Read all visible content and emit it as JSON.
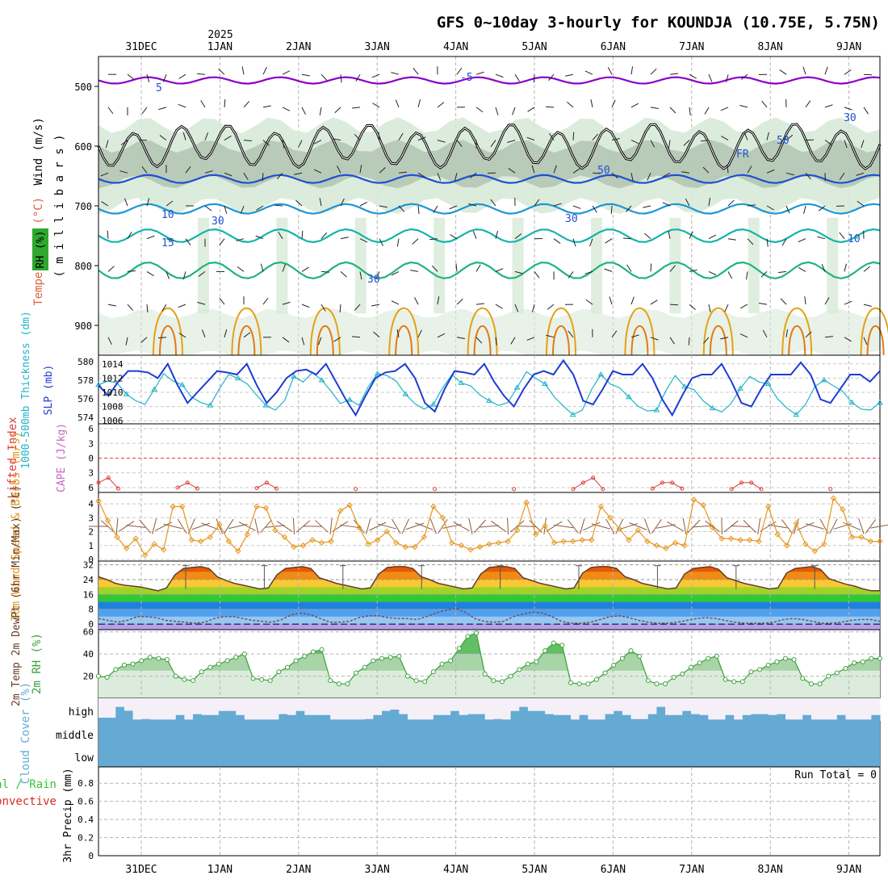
{
  "title": "GFS 0~10day 3-hourly for KOUNDJA (10.75E, 5.75N)",
  "year_label": "2025",
  "days": [
    "31DEC",
    "1JAN",
    "2JAN",
    "3JAN",
    "4JAN",
    "5JAN",
    "6JAN",
    "7JAN",
    "8JAN",
    "9JAN"
  ],
  "chart_data": [
    {
      "type": "heatmap",
      "id": "upper-air",
      "ylabel_parts": {
        "rh": "RH (%)",
        "temp": "Temperature (°C)",
        "wind": "Wind (m/s)",
        "pres": "( m i l l i b a r s )"
      },
      "yticks": [
        500,
        600,
        700,
        800,
        900
      ],
      "ylim": [
        950,
        450
      ],
      "contour_labels": [
        "5",
        "-5",
        "10",
        "15",
        "30",
        "30",
        "30",
        "30",
        "50",
        "50",
        "FR",
        "10"
      ],
      "colors": {
        "moist": "#d8ead8",
        "very_moist": "#9aae9a",
        "saturated": "#4cc24c",
        "t_minus5": "#8b00c8",
        "t_5": "#1e50d2",
        "t_10": "#1e96d2",
        "t_15": "#14b4aa",
        "t_20": "#1eb482",
        "t_25": "#e6a014",
        "t_30": "#e67814",
        "freezing": "#000000"
      }
    },
    {
      "type": "line",
      "id": "thickness-slp",
      "ylabel_left": "1000-500mb Thickness (dm)",
      "ylabel_right": "SLP (mb)",
      "left_ticks": [
        574,
        576,
        578,
        580
      ],
      "right_ticks": [
        1006,
        1008,
        1010,
        1012,
        1014
      ],
      "slp": [
        1011,
        1009.5,
        1011.5,
        1013,
        1013,
        1012.8,
        1012,
        1014,
        1011,
        1008.5,
        1010,
        1011.5,
        1013,
        1012.8,
        1012.5,
        1014,
        1011,
        1008.5,
        1010,
        1012,
        1013,
        1013.2,
        1012.5,
        1014,
        1011.5,
        1009,
        1006.8,
        1009.5,
        1012,
        1012.8,
        1013,
        1014,
        1012,
        1008.5,
        1007.3,
        1010.5,
        1013,
        1012.8,
        1012.5,
        1014,
        1011.5,
        1009.5,
        1008,
        1010.5,
        1012.5,
        1013,
        1012.5,
        1014.5,
        1012.5,
        1008.8,
        1008.3,
        1010.5,
        1013,
        1012.5,
        1012.5,
        1014,
        1012,
        1009,
        1006.8,
        1009.5,
        1012,
        1012.5,
        1012.5,
        1014,
        1011.5,
        1008.5,
        1008,
        1010.5,
        1012.5,
        1012.5,
        1012.5,
        1014.2,
        1012.5,
        1009,
        1008.5,
        1010.5,
        1012.5,
        1012.5,
        1011.5,
        1013
      ],
      "thickness": [
        577.5,
        577.9,
        577.7,
        576.5,
        575.8,
        575.4,
        577.0,
        578.7,
        577.9,
        577.5,
        576.2,
        575.6,
        575.3,
        577.1,
        578.6,
        578.2,
        577.6,
        576.4,
        575.3,
        574.8,
        575.8,
        578.4,
        577.8,
        578.8,
        578.0,
        576.8,
        575.5,
        575.9,
        575.3,
        577.3,
        578.7,
        578.5,
        577.9,
        576.5,
        575.5,
        574.9,
        575.4,
        577.2,
        578.6,
        577.7,
        577.4,
        576.4,
        575.8,
        575.3,
        575.6,
        577.2,
        578.9,
        578.2,
        577.6,
        576.2,
        575.2,
        574.3,
        574.8,
        577.0,
        578.6,
        577.6,
        577.2,
        576.2,
        575.2,
        574.7,
        574.8,
        576.9,
        578.5,
        577.3,
        577.0,
        575.8,
        575.0,
        574.6,
        575.5,
        577.1,
        578.4,
        577.8,
        577.6,
        576.0,
        575.0,
        574.3,
        575.4,
        577.3,
        578.0,
        577.4,
        576.8,
        575.6,
        574.9,
        574.8,
        575.6
      ],
      "colors": {
        "slp": "#1e3cd2",
        "thickness": "#1eb4c8"
      }
    },
    {
      "type": "line",
      "id": "cape-li",
      "ylabel": "Lifted Index",
      "ylabel2": "CAPE (J/kg)",
      "yticks": [
        "6",
        "3",
        "0",
        "3",
        "6"
      ],
      "lifted_index": [
        -5.0,
        -4.0,
        -6.2,
        null,
        null,
        null,
        null,
        null,
        -6.0,
        -5.0,
        -6.2,
        null,
        null,
        null,
        null,
        null,
        -6.1,
        -5.0,
        -6.2,
        null,
        null,
        null,
        null,
        null,
        null,
        null,
        -6.3,
        null,
        null,
        null,
        null,
        null,
        null,
        null,
        -6.3,
        null,
        null,
        null,
        null,
        null,
        null,
        null,
        -6.3,
        null,
        null,
        null,
        null,
        null,
        -6.3,
        -5.0,
        -4.0,
        -6.3,
        null,
        null,
        null,
        null,
        -6.2,
        -5.0,
        -5.0,
        -6.2,
        null,
        null,
        null,
        null,
        -6.3,
        -5.0,
        -5.0,
        -6.3,
        null,
        null,
        null,
        null,
        null,
        null,
        -6.3,
        null,
        null,
        null,
        null,
        null
      ],
      "colors": {
        "lifted_index": "#dc3c3c",
        "cape": "#c864c8",
        "zero_line": "#dc3c3c"
      }
    },
    {
      "type": "line",
      "id": "wind10m",
      "ylabel": "10m Wind Speed & Barbs (m/s)",
      "yticks": [
        0,
        1,
        2,
        3,
        4
      ],
      "speed": [
        4.2,
        2.8,
        1.6,
        0.8,
        1.5,
        0.3,
        1.1,
        0.7,
        3.8,
        3.8,
        1.4,
        1.3,
        1.6,
        2.5,
        1.3,
        0.6,
        1.8,
        3.8,
        3.7,
        2.1,
        1.6,
        0.9,
        1.0,
        1.4,
        1.2,
        1.3,
        3.5,
        3.9,
        2.3,
        1.1,
        1.4,
        2.0,
        1.2,
        0.9,
        0.9,
        1.6,
        3.8,
        3.0,
        1.2,
        1.0,
        0.7,
        0.9,
        1.1,
        1.2,
        1.3,
        2.1,
        4.1,
        1.8,
        2.4,
        1.2,
        1.3,
        1.3,
        1.4,
        1.4,
        3.8,
        3.0,
        2.2,
        1.4,
        2.1,
        1.3,
        1.0,
        0.8,
        1.2,
        1.0,
        4.3,
        3.9,
        2.3,
        1.5,
        1.5,
        1.4,
        1.4,
        1.3,
        3.8,
        1.8,
        1.0,
        2.6,
        1.1,
        0.6,
        1.1,
        4.4,
        3.6,
        1.6,
        1.6,
        1.3,
        1.3
      ],
      "colors": {
        "speed": "#e6961e",
        "barbs": "#8c5a3c"
      }
    },
    {
      "type": "area",
      "id": "temp2m",
      "ylabel": "2m Temp 2m DewPt (6hr Min/Max) (°C)",
      "yticks": [
        0,
        8,
        16,
        24,
        32
      ],
      "temp": [
        25.5,
        24.0,
        22.0,
        21.0,
        20.5,
        20.0,
        19.0,
        18.0,
        19.5,
        26.5,
        30.0,
        30.5,
        31.0,
        30.0,
        25.5,
        23.5,
        22.0,
        21.0,
        20.0,
        19.0,
        19.5,
        26.5,
        30.0,
        30.5,
        31.0,
        30.0,
        25.0,
        23.5,
        22.0,
        21.0,
        20.0,
        19.0,
        19.5,
        27.0,
        30.5,
        31.0,
        31.0,
        30.0,
        25.5,
        24.0,
        22.0,
        21.0,
        20.0,
        19.0,
        19.5,
        27.0,
        30.5,
        31.0,
        31.0,
        30.0,
        25.0,
        23.5,
        22.0,
        21.0,
        20.0,
        19.0,
        19.5,
        27.5,
        30.5,
        31.0,
        31.0,
        30.0,
        25.5,
        24.0,
        22.0,
        21.0,
        20.0,
        19.0,
        19.5,
        27.0,
        30.0,
        30.5,
        31.0,
        29.5,
        25.0,
        23.5,
        22.0,
        21.0,
        20.0,
        19.0,
        19.5,
        27.5,
        30.0,
        30.5,
        31.0,
        29.5,
        24.5,
        23.0,
        21.5,
        20.5,
        19.0,
        18.0,
        18.0
      ],
      "dewpoint": [
        3.0,
        2.0,
        1.0,
        2.0,
        4.0,
        4.0,
        3.5,
        2.0,
        1.5,
        1.0,
        0.5,
        1.0,
        3.0,
        4.0,
        4.0,
        3.0,
        2.0,
        1.5,
        1.0,
        2.5,
        5.0,
        6.0,
        5.0,
        3.0,
        1.0,
        1.0,
        1.5,
        3.5,
        4.5,
        4.5,
        3.5,
        3.0,
        3.0,
        2.5,
        4.0,
        6.0,
        7.5,
        8.5,
        6.5,
        3.0,
        1.5,
        1.0,
        1.5,
        4.0,
        5.5,
        6.5,
        6.0,
        4.0,
        1.5,
        0.5,
        0.5,
        1.0,
        2.5,
        4.0,
        4.5,
        3.5,
        2.0,
        1.0,
        0.5,
        0.5,
        1.0,
        2.0,
        3.0,
        3.5,
        3.0,
        2.0,
        1.0,
        0.5,
        0.5,
        0.5,
        1.0,
        2.5,
        3.0,
        2.5,
        1.5,
        0.5,
        0.5,
        1.0,
        2.0,
        2.5,
        2.5,
        1.5
      ],
      "bands": [
        {
          "from": 28,
          "to": 40,
          "color": "#e65a00"
        },
        {
          "from": 24,
          "to": 28,
          "color": "#f08c14"
        },
        {
          "from": 20,
          "to": 24,
          "color": "#fac832"
        },
        {
          "from": 16,
          "to": 20,
          "color": "#a0d228"
        },
        {
          "from": 12,
          "to": 16,
          "color": "#32c832"
        },
        {
          "from": 8,
          "to": 12,
          "color": "#1e82dc"
        },
        {
          "from": 4,
          "to": 8,
          "color": "#50a0f0"
        },
        {
          "from": 0,
          "to": 4,
          "color": "#96c8f5"
        },
        {
          "from": -4,
          "to": 0,
          "color": "#b4a0f0"
        }
      ],
      "colors": {
        "temp_line": "#643c28",
        "dew_line": "#785050",
        "freeze_line": "#000000"
      }
    },
    {
      "type": "area",
      "id": "rh2m",
      "ylabel": "2m RH (%)",
      "yticks": [
        20,
        40,
        60
      ],
      "ylim": [
        0,
        60
      ],
      "rh": [
        20,
        19,
        26,
        30,
        31,
        34,
        37,
        36,
        35,
        20,
        17,
        16,
        24,
        28,
        31,
        34,
        37,
        40,
        18,
        17,
        16,
        24,
        28,
        34,
        38,
        42,
        44,
        16,
        13,
        13,
        23,
        28,
        34,
        36,
        37,
        38,
        20,
        16,
        15,
        24,
        31,
        34,
        45,
        56,
        59,
        22,
        16,
        15,
        20,
        26,
        31,
        33,
        43,
        50,
        48,
        14,
        13,
        13,
        17,
        23,
        30,
        36,
        43,
        38,
        16,
        13,
        13,
        19,
        22,
        28,
        32,
        36,
        38,
        17,
        15,
        15,
        24,
        26,
        30,
        33,
        36,
        35,
        18,
        13,
        13,
        20,
        23,
        27,
        32,
        33,
        36,
        36
      ],
      "colors": {
        "fill_light": "#dcecdc",
        "fill_mid": "#a8d4a8",
        "fill_dark": "#64be64",
        "line": "#3ca03c"
      }
    },
    {
      "type": "bar",
      "id": "cloud-cover",
      "ylabel": "Cloud Cover (%)",
      "levels": [
        "high",
        "middle",
        "low"
      ],
      "high": [
        14,
        14,
        62,
        45,
        6,
        8,
        6,
        6,
        6,
        26,
        6,
        30,
        26,
        26,
        44,
        44,
        26,
        6,
        6,
        6,
        6,
        30,
        26,
        44,
        26,
        26,
        26,
        6,
        6,
        6,
        6,
        8,
        26,
        44,
        50,
        30,
        6,
        6,
        6,
        26,
        26,
        44,
        26,
        30,
        30,
        6,
        8,
        6,
        44,
        62,
        44,
        44,
        30,
        26,
        26,
        6,
        26,
        6,
        6,
        30,
        44,
        26,
        8,
        8,
        30,
        62,
        26,
        26,
        44,
        30,
        26,
        6,
        6,
        26,
        6,
        26,
        30,
        30,
        26,
        30,
        6,
        6,
        26,
        6,
        6,
        6,
        26,
        6,
        6,
        6,
        26
      ],
      "colors": {
        "cloud": "#64aad2",
        "clear": "#f5f0f8"
      }
    },
    {
      "type": "bar",
      "id": "precip",
      "ylabel": "3hr Precip (mm)",
      "ylabel2": "Total / Rain",
      "ylabel3": "Convective",
      "yticks": [
        0,
        0.2,
        0.4,
        0.6,
        0.8
      ],
      "ylim": [
        0,
        1
      ],
      "run_total": "Run Total = 0",
      "values": [],
      "colors": {
        "total": "#32c832",
        "convective": "#dc2828"
      }
    }
  ]
}
